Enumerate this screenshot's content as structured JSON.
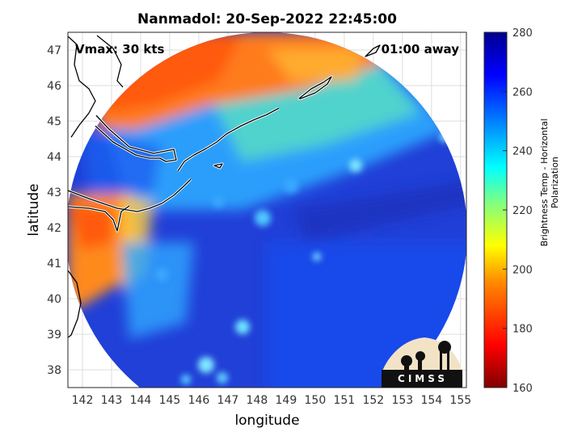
{
  "title": "Nanmadol: 20-Sep-2022 22:45:00",
  "vmax_label": "Vmax: 30 kts",
  "time_label": "01:00 away",
  "xlabel": "longitude",
  "ylabel": "latitude",
  "colorbar": {
    "label": "Brightness Temp - Horizontal Polarization",
    "min": 160,
    "max": 280,
    "ticks": [
      "280",
      "260",
      "240",
      "220",
      "200",
      "180",
      "160"
    ]
  },
  "axes": {
    "xlim": [
      141.5,
      155.2
    ],
    "ylim": [
      37.5,
      47.5
    ],
    "xticks": [
      "142",
      "143",
      "144",
      "145",
      "146",
      "147",
      "148",
      "149",
      "150",
      "151",
      "152",
      "153",
      "154",
      "155"
    ],
    "yticks": [
      "47",
      "46",
      "45",
      "44",
      "43",
      "42",
      "41",
      "40",
      "39",
      "38"
    ]
  },
  "logo_text": "CIMSS",
  "colors": {
    "ocean_core": "#1e32d2",
    "ocean_light": "#2a7aff",
    "land_warm": "#ff8a1c",
    "land_hot": "#ff5a10",
    "grid": "#d9d9d9"
  }
}
